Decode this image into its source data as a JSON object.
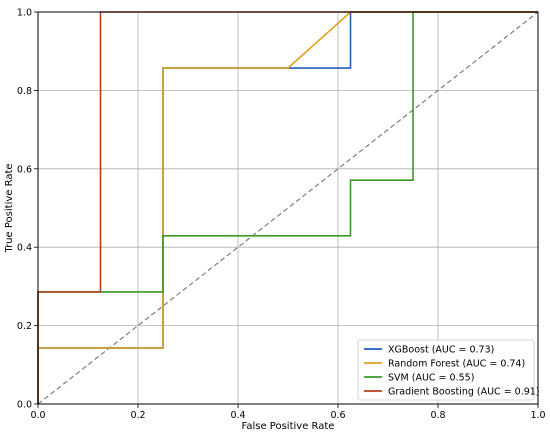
{
  "chart_data": {
    "type": "line",
    "xlabel": "False Positive Rate",
    "ylabel": "True Positive Rate",
    "xlim": [
      0.0,
      1.0
    ],
    "ylim": [
      0.0,
      1.0
    ],
    "xticks": [
      "0.0",
      "0.2",
      "0.4",
      "0.6",
      "0.8",
      "1.0"
    ],
    "yticks": [
      "0.0",
      "0.2",
      "0.4",
      "0.6",
      "0.8",
      "1.0"
    ],
    "grid": true,
    "legend_position": "lower-right",
    "diagonal": {
      "style": "dashed",
      "color": "#7f7f7f",
      "x": [
        0,
        1
      ],
      "y": [
        0,
        1
      ]
    },
    "series": [
      {
        "name": "XGBoost (AUC = 0.73)",
        "color": "#1f5fbf",
        "x": [
          0.0,
          0.0,
          0.25,
          0.25,
          0.625,
          0.625,
          1.0
        ],
        "y": [
          0.0,
          0.143,
          0.143,
          0.857,
          0.857,
          1.0,
          1.0
        ]
      },
      {
        "name": "Random Forest (AUC = 0.74)",
        "color": "#e0a020",
        "x": [
          0.0,
          0.0,
          0.25,
          0.25,
          0.5,
          0.625,
          1.0
        ],
        "y": [
          0.0,
          0.143,
          0.143,
          0.857,
          0.857,
          1.0,
          1.0
        ]
      },
      {
        "name": "SVM (AUC = 0.55)",
        "color": "#3a9a28",
        "x": [
          0.0,
          0.0,
          0.25,
          0.25,
          0.625,
          0.625,
          0.75,
          0.75,
          1.0
        ],
        "y": [
          0.0,
          0.286,
          0.286,
          0.429,
          0.429,
          0.571,
          0.571,
          1.0,
          1.0
        ]
      },
      {
        "name": "Gradient Boosting (AUC = 0.91)",
        "color": "#b5401e",
        "x": [
          0.0,
          0.0,
          0.125,
          0.125,
          1.0
        ],
        "y": [
          0.0,
          0.286,
          0.286,
          1.0,
          1.0
        ]
      }
    ]
  }
}
